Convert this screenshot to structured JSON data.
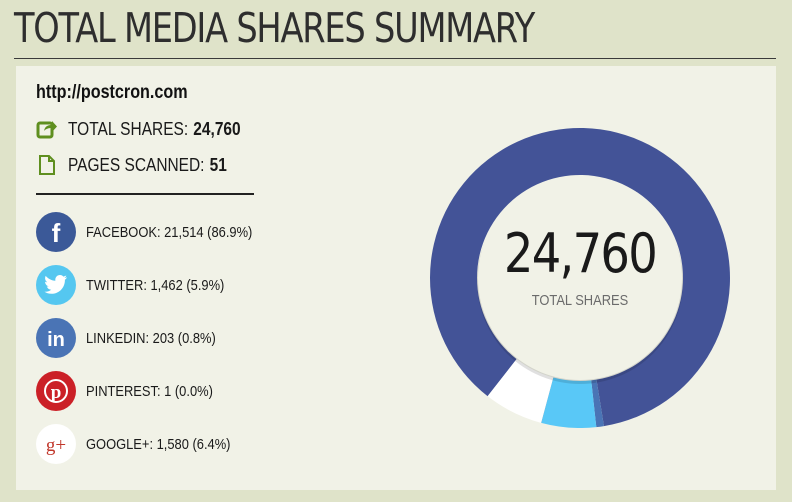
{
  "page": {
    "title": "TOTAL MEDIA SHARES SUMMARY"
  },
  "summary": {
    "url": "http://postcron.com",
    "total_shares_label": "TOTAL SHARES:",
    "total_shares_value": "24,760",
    "pages_scanned_label": "PAGES SCANNED:",
    "pages_scanned_value": "51"
  },
  "icons": {
    "total_shares": "share-arrow-icon",
    "pages_scanned": "document-icon"
  },
  "networks": [
    {
      "name": "facebook",
      "icon": "facebook-icon",
      "text": "FACEBOOK: 21,514 (86.9%)",
      "color": "#3b5998"
    },
    {
      "name": "twitter",
      "icon": "twitter-icon",
      "text": "TWITTER: 1,462 (5.9%)",
      "color": "#55c7f0"
    },
    {
      "name": "linkedin",
      "icon": "linkedin-icon",
      "text": "LINKEDIN: 203 (0.8%)",
      "color": "#4a74b5"
    },
    {
      "name": "pinterest",
      "icon": "pinterest-icon",
      "text": "PINTEREST: 1 (0.0%)",
      "color": "#cb2027"
    },
    {
      "name": "googleplus",
      "icon": "google-plus-icon",
      "text": "GOOGLE+: 1,580 (6.4%)",
      "color": "#ffffff"
    }
  ],
  "donut": {
    "center_value": "24,760",
    "center_label": "TOTAL SHARES",
    "segments": [
      {
        "name": "Facebook",
        "value": 21514,
        "color": "#435397"
      },
      {
        "name": "LinkedIn",
        "value": 203,
        "color": "#4a74b5"
      },
      {
        "name": "Twitter",
        "value": 1462,
        "color": "#59c8f7"
      },
      {
        "name": "Pinterest",
        "value": 1,
        "color": "#cb2027"
      },
      {
        "name": "Google+",
        "value": 1580,
        "color": "#ffffff"
      }
    ]
  },
  "colors": {
    "background": "#dfe3c9",
    "panel": "#f1f2e7",
    "icon_green": "#5f8f1f"
  }
}
